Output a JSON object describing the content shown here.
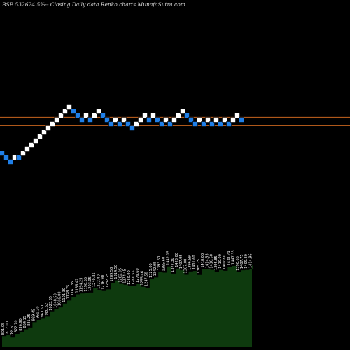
{
  "header": {
    "title": "BSE 532624  5%--  Closing Daily data  Renko  charts MunafaSutra.com"
  },
  "colors": {
    "background": "#000000",
    "up_brick": "#ffffff",
    "down_brick": "#1f7fe8",
    "level_line": "#c8641e",
    "volume_fill": "#0e3a0e",
    "label_text": "#ffffff"
  },
  "chart_data": {
    "type": "renko",
    "brick_size_percent": 5,
    "bricks": [
      {
        "direction": "down",
        "level": 0
      },
      {
        "direction": "down",
        "level": -1
      },
      {
        "direction": "down",
        "level": -2
      },
      {
        "direction": "up",
        "level": -1
      },
      {
        "direction": "down",
        "level": -1
      },
      {
        "direction": "up",
        "level": 0
      },
      {
        "direction": "up",
        "level": 1
      },
      {
        "direction": "up",
        "level": 2
      },
      {
        "direction": "up",
        "level": 3
      },
      {
        "direction": "up",
        "level": 4
      },
      {
        "direction": "up",
        "level": 5
      },
      {
        "direction": "up",
        "level": 6
      },
      {
        "direction": "up",
        "level": 7
      },
      {
        "direction": "up",
        "level": 8
      },
      {
        "direction": "up",
        "level": 9
      },
      {
        "direction": "up",
        "level": 10
      },
      {
        "direction": "up",
        "level": 11
      },
      {
        "direction": "down",
        "level": 10
      },
      {
        "direction": "down",
        "level": 9
      },
      {
        "direction": "down",
        "level": 8
      },
      {
        "direction": "up",
        "level": 9
      },
      {
        "direction": "down",
        "level": 8
      },
      {
        "direction": "up",
        "level": 9
      },
      {
        "direction": "up",
        "level": 10
      },
      {
        "direction": "down",
        "level": 9
      },
      {
        "direction": "down",
        "level": 8
      },
      {
        "direction": "down",
        "level": 7
      },
      {
        "direction": "up",
        "level": 8
      },
      {
        "direction": "down",
        "level": 7
      },
      {
        "direction": "up",
        "level": 8
      },
      {
        "direction": "down",
        "level": 7
      },
      {
        "direction": "down",
        "level": 6
      },
      {
        "direction": "up",
        "level": 7
      },
      {
        "direction": "up",
        "level": 8
      },
      {
        "direction": "up",
        "level": 9
      },
      {
        "direction": "down",
        "level": 8
      },
      {
        "direction": "up",
        "level": 9
      },
      {
        "direction": "down",
        "level": 8
      },
      {
        "direction": "down",
        "level": 7
      },
      {
        "direction": "up",
        "level": 8
      },
      {
        "direction": "down",
        "level": 7
      },
      {
        "direction": "up",
        "level": 8
      },
      {
        "direction": "up",
        "level": 9
      },
      {
        "direction": "up",
        "level": 10
      },
      {
        "direction": "down",
        "level": 9
      },
      {
        "direction": "down",
        "level": 8
      },
      {
        "direction": "down",
        "level": 7
      },
      {
        "direction": "up",
        "level": 8
      },
      {
        "direction": "down",
        "level": 7
      },
      {
        "direction": "up",
        "level": 8
      },
      {
        "direction": "down",
        "level": 7
      },
      {
        "direction": "up",
        "level": 8
      },
      {
        "direction": "down",
        "level": 7
      },
      {
        "direction": "up",
        "level": 8
      },
      {
        "direction": "down",
        "level": 7
      },
      {
        "direction": "up",
        "level": 8
      },
      {
        "direction": "up",
        "level": 9
      },
      {
        "direction": "down",
        "level": 8
      }
    ],
    "reference_levels": [
      8.6,
      6.6
    ],
    "price_labels": [
      "801.05",
      "812.00",
      "788.51",
      "822.70",
      "836.90",
      "864.15",
      "881.25",
      "929.45",
      "951.20",
      "961.50",
      "980.62",
      "1023.85",
      "1048.50",
      "1066.00",
      "1101.30",
      "1128.75",
      "1161.35",
      "1186.42",
      "1194.25",
      "1198.55",
      "1203.05",
      "1240.85",
      "1222.40",
      "1216.90",
      "1232.25",
      "1289.58",
      "1314.50",
      "1282.05",
      "1274.45",
      "1260.90",
      "1260.55",
      "1279.60",
      "1255.46",
      "1247.58",
      "1325.00",
      "1342.05",
      "1393.50",
      "1385.60",
      "1442.15",
      "1377.30",
      "1423.00",
      "1407.95",
      "1367.00",
      "1396.59",
      "1401.60",
      "1365.25",
      "1418.00",
      "1414.55",
      "1410.50",
      "1395.85",
      "1410.00",
      "1402.80",
      "1438.24",
      "1447.35",
      "1390.65",
      "1407.75",
      "1409.80",
      "1414.95"
    ]
  }
}
